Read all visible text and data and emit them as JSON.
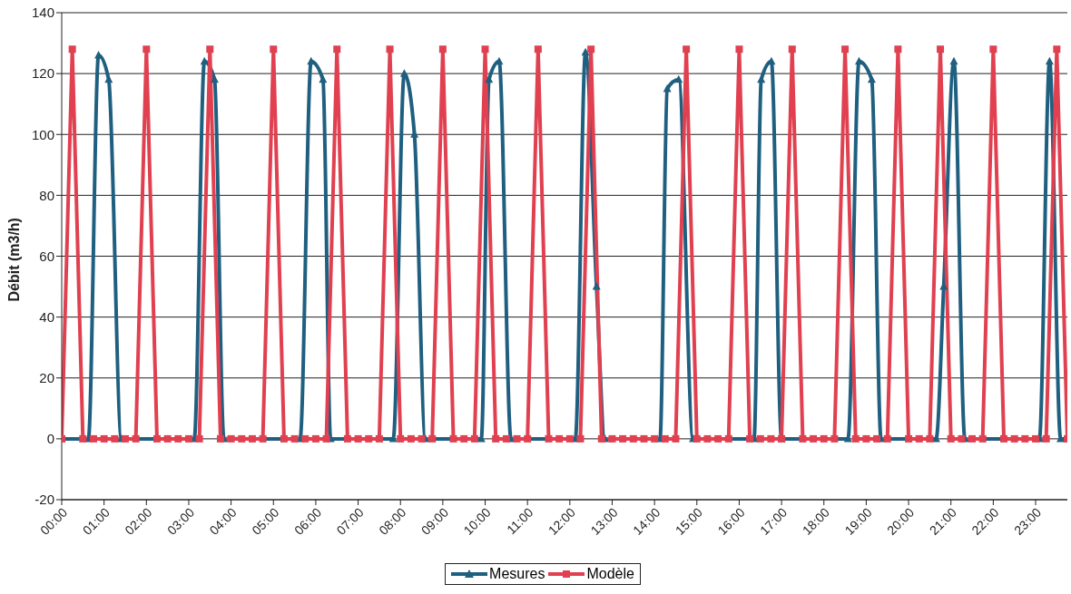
{
  "chart_data": {
    "type": "line",
    "ylabel": "Débit (m3/h)",
    "x": [
      0,
      0.25,
      0.5,
      0.75,
      1,
      1.25,
      1.5,
      1.75,
      2,
      2.25,
      2.5,
      2.75,
      3,
      3.25,
      3.5,
      3.75,
      4,
      4.25,
      4.5,
      4.75,
      5,
      5.25,
      5.5,
      5.75,
      6,
      6.25,
      6.5,
      6.75,
      7,
      7.25,
      7.5,
      7.75,
      8,
      8.25,
      8.5,
      8.75,
      9,
      9.25,
      9.5,
      9.75,
      10,
      10.25,
      10.5,
      10.75,
      11,
      11.25,
      11.5,
      11.75,
      12,
      12.25,
      12.5,
      12.75,
      13,
      13.25,
      13.5,
      13.75,
      14,
      14.25,
      14.5,
      14.75,
      15,
      15.25,
      15.5,
      15.75,
      16,
      16.25,
      16.5,
      16.75,
      17,
      17.25,
      17.5,
      17.75,
      18,
      18.25,
      18.5,
      18.75,
      19,
      19.25,
      19.5,
      19.75,
      20,
      20.25,
      20.5,
      20.75,
      21,
      21.25,
      21.5,
      21.75,
      22,
      22.25,
      22.5,
      22.75,
      23,
      23.25,
      23.5,
      23.75
    ],
    "series": [
      {
        "name": "Mesures",
        "color": "#1f5f80",
        "marker": "triangle",
        "line_style": "solid",
        "x": [
          0,
          0.63,
          0.87,
          1.11,
          1.41,
          3.13,
          3.37,
          3.61,
          3.83,
          5.63,
          5.89,
          6.17,
          6.35,
          7.83,
          8.09,
          8.33,
          8.59,
          9.91,
          10.09,
          10.33,
          10.61,
          12.13,
          12.37,
          12.63,
          12.83,
          14.13,
          14.3,
          14.57,
          14.91,
          16.35,
          16.52,
          16.76,
          17,
          18.57,
          18.83,
          19.13,
          19.35,
          20.65,
          20.83,
          21.07,
          21.33,
          23.09,
          23.33,
          23.59,
          23.75
        ],
        "values": [
          0,
          0,
          126,
          118,
          0,
          0,
          124,
          118,
          0,
          0,
          124,
          118,
          0,
          0,
          120,
          100,
          0,
          0,
          118,
          124,
          0,
          0,
          127,
          50,
          0,
          0,
          115,
          118,
          0,
          0,
          118,
          124,
          0,
          0,
          124,
          118,
          0,
          0,
          50,
          124,
          0,
          0,
          124,
          0,
          0
        ]
      },
      {
        "name": "Modèle",
        "color": "#e0404f",
        "marker": "square",
        "line_style": "solid",
        "values": [
          0,
          128,
          0,
          0,
          0,
          0,
          0,
          0,
          128,
          0,
          0,
          0,
          0,
          0,
          128,
          0,
          0,
          0,
          0,
          0,
          128,
          0,
          0,
          0,
          0,
          0,
          128,
          0,
          0,
          0,
          0,
          128,
          0,
          0,
          0,
          0,
          128,
          0,
          0,
          0,
          128,
          0,
          0,
          0,
          0,
          128,
          0,
          0,
          0,
          0,
          128,
          0,
          0,
          0,
          0,
          0,
          0,
          0,
          0,
          128,
          0,
          0,
          0,
          0,
          128,
          0,
          0,
          0,
          0,
          128,
          0,
          0,
          0,
          0,
          128,
          0,
          0,
          0,
          0,
          128,
          0,
          0,
          0,
          128,
          0,
          0,
          0,
          0,
          128,
          0,
          0,
          0,
          0,
          0,
          128,
          0
        ]
      }
    ],
    "xlim": [
      0,
      23.75
    ],
    "xticks": [
      {
        "value": 0,
        "label": "00:00"
      },
      {
        "value": 1,
        "label": "01:00"
      },
      {
        "value": 2,
        "label": "02:00"
      },
      {
        "value": 3,
        "label": "03:00"
      },
      {
        "value": 4,
        "label": "04:00"
      },
      {
        "value": 5,
        "label": "05:00"
      },
      {
        "value": 6,
        "label": "06:00"
      },
      {
        "value": 7,
        "label": "07:00"
      },
      {
        "value": 8,
        "label": "08:00"
      },
      {
        "value": 9,
        "label": "09:00"
      },
      {
        "value": 10,
        "label": "10:00"
      },
      {
        "value": 11,
        "label": "11:00"
      },
      {
        "value": 12,
        "label": "12:00"
      },
      {
        "value": 13,
        "label": "13:00"
      },
      {
        "value": 14,
        "label": "14:00"
      },
      {
        "value": 15,
        "label": "15:00"
      },
      {
        "value": 16,
        "label": "16:00"
      },
      {
        "value": 17,
        "label": "17:00"
      },
      {
        "value": 18,
        "label": "18:00"
      },
      {
        "value": 19,
        "label": "19:00"
      },
      {
        "value": 20,
        "label": "20:00"
      },
      {
        "value": 21,
        "label": "21:00"
      },
      {
        "value": 22,
        "label": "22:00"
      },
      {
        "value": 23,
        "label": "23:00"
      }
    ],
    "ylim": [
      -20,
      140
    ],
    "yticks": [
      -20,
      0,
      20,
      40,
      60,
      80,
      100,
      120,
      140
    ],
    "grid": "y",
    "legend": "bottom"
  }
}
